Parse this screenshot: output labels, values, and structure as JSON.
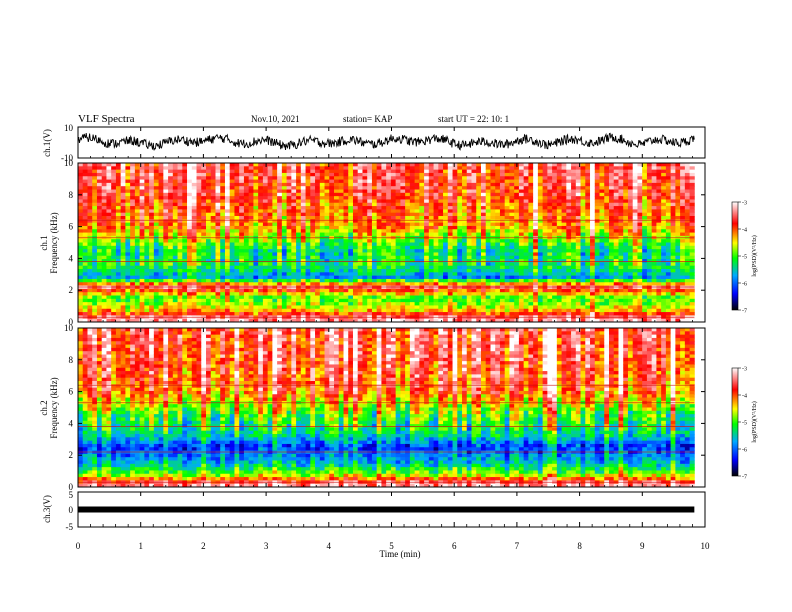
{
  "header": {
    "title": "VLF Spectra",
    "date": "Nov.10, 2021",
    "station": "station= KAP",
    "start": "start  UT =   22: 10: 1"
  },
  "chart_data": [
    {
      "type": "line",
      "panel": "ch1-waveform",
      "ylabel": "ch.1(V)",
      "ylim": [
        -10,
        10
      ],
      "xlim": [
        0,
        10
      ],
      "y_ticks": [
        "10",
        "-10"
      ],
      "line_color": "#000000",
      "x": [
        0,
        0.5,
        1.0,
        1.5,
        2.0,
        2.5,
        3.0,
        3.5,
        4.0,
        4.5,
        5.0,
        5.5,
        6.0,
        6.5,
        7.0,
        7.5,
        8.0,
        8.5,
        9.0,
        9.5,
        9.83
      ],
      "y": [
        2,
        1,
        -1,
        0,
        2,
        1,
        0,
        -1,
        1,
        0,
        1,
        2,
        0,
        -1,
        1,
        0,
        1,
        2,
        0,
        1,
        2
      ]
    },
    {
      "type": "heatmap",
      "panel": "ch1-spectrogram",
      "ylabel": "ch.1",
      "ylabel2": "Frequency  (kHz)",
      "ylim": [
        0,
        10
      ],
      "xlim": [
        0,
        10
      ],
      "y_ticks": [
        "0",
        "2",
        "4",
        "6",
        "8",
        "10"
      ],
      "colorbar": {
        "label": "log(PSD)(V²/Hz)",
        "range": [
          -7,
          -3
        ],
        "ticks": [
          "-3",
          "-4",
          "-5",
          "-6",
          "-7"
        ],
        "colors": [
          "#000000",
          "#0000ff",
          "#00aaff",
          "#00ff00",
          "#ffff00",
          "#ff0000",
          "#ffffff"
        ]
      },
      "frequency_profile_kHz": [
        {
          "f": 0.2,
          "level": -3.3
        },
        {
          "f": 0.8,
          "level": -4.5
        },
        {
          "f": 1.5,
          "level": -5.0
        },
        {
          "f": 2.2,
          "level": -3.5
        },
        {
          "f": 2.8,
          "level": -5.8
        },
        {
          "f": 3.5,
          "level": -5.2
        },
        {
          "f": 4.5,
          "level": -5.3
        },
        {
          "f": 6.0,
          "level": -4.2
        },
        {
          "f": 8.0,
          "level": -3.8
        },
        {
          "f": 10.0,
          "level": -3.6
        }
      ]
    },
    {
      "type": "heatmap",
      "panel": "ch2-spectrogram",
      "ylabel": "ch.2",
      "ylabel2": "Frequency  (kHz)",
      "ylim": [
        0,
        10
      ],
      "xlim": [
        0,
        10
      ],
      "y_ticks": [
        "0",
        "2",
        "4",
        "6",
        "8",
        "10"
      ],
      "colorbar": {
        "label": "log(PSD)(V²/Hz)",
        "range": [
          -7,
          -3
        ],
        "ticks": [
          "-3",
          "-4",
          "-5",
          "-6",
          "-7"
        ],
        "colors": [
          "#000000",
          "#0000ff",
          "#00aaff",
          "#00ff00",
          "#ffff00",
          "#ff0000",
          "#ffffff"
        ]
      },
      "frequency_profile_kHz": [
        {
          "f": 0.2,
          "level": -3.3
        },
        {
          "f": 0.8,
          "level": -4.8
        },
        {
          "f": 1.5,
          "level": -5.6
        },
        {
          "f": 2.5,
          "level": -6.2
        },
        {
          "f": 3.3,
          "level": -5.4
        },
        {
          "f": 4.5,
          "level": -5.0
        },
        {
          "f": 6.0,
          "level": -4.0
        },
        {
          "f": 8.0,
          "level": -3.7
        },
        {
          "f": 10.0,
          "level": -3.6
        }
      ]
    },
    {
      "type": "line",
      "panel": "ch3-waveform",
      "ylabel": "ch.3(V)",
      "ylim": [
        -5,
        5
      ],
      "xlim": [
        0,
        10
      ],
      "y_ticks": [
        "5",
        "0",
        "-5"
      ],
      "line_color": "#000000",
      "x": [
        0,
        9.83
      ],
      "y": [
        0,
        0
      ]
    }
  ],
  "x_axis": {
    "label": "Time  (min)",
    "range": [
      0,
      10
    ],
    "ticks": [
      "0",
      "1",
      "2",
      "3",
      "4",
      "5",
      "6",
      "7",
      "8",
      "9",
      "10"
    ]
  }
}
